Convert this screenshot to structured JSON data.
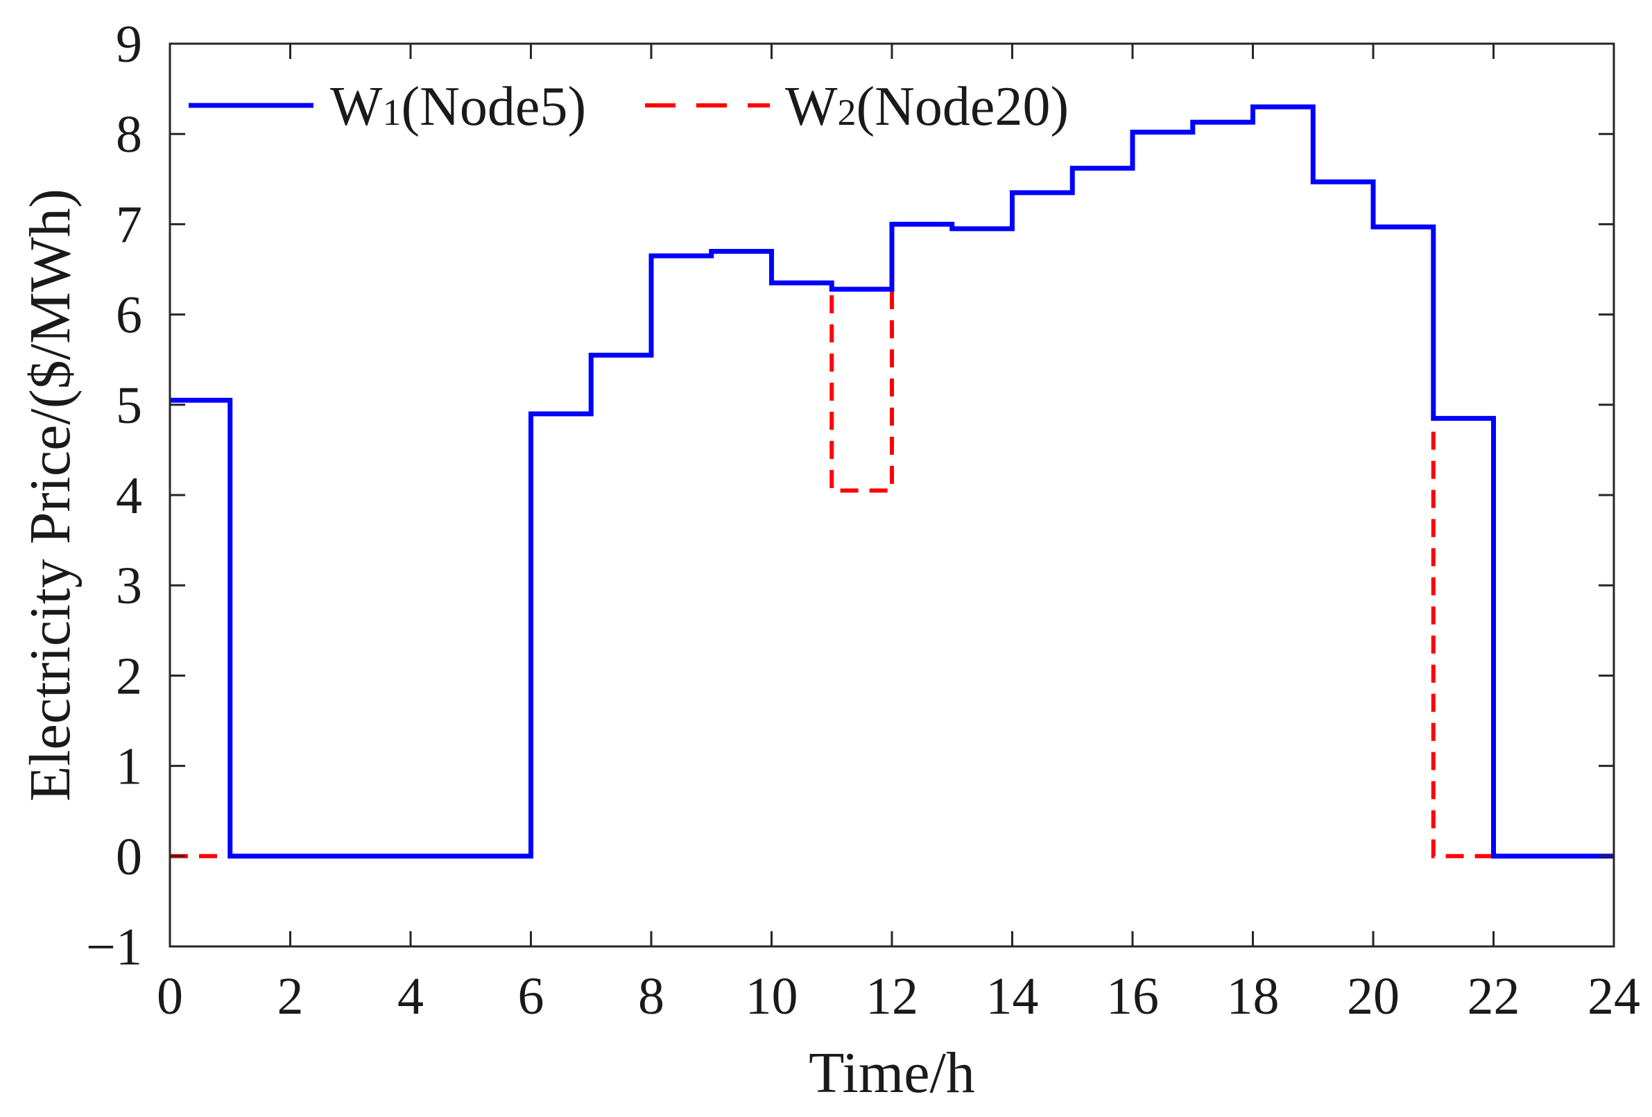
{
  "chart_data": {
    "type": "line",
    "step": true,
    "xlabel": "Time/h",
    "ylabel": "Electricity Price/($/MWh)",
    "xlim": [
      0,
      24
    ],
    "ylim": [
      -1,
      9
    ],
    "xticks": [
      0,
      2,
      4,
      6,
      8,
      10,
      12,
      14,
      16,
      18,
      20,
      22,
      24
    ],
    "yticks": [
      -1,
      0,
      1,
      2,
      3,
      4,
      5,
      6,
      7,
      8,
      9
    ],
    "ytick_labels": [
      "−1",
      "0",
      "1",
      "2",
      "3",
      "4",
      "5",
      "6",
      "7",
      "8",
      "9"
    ],
    "grid": false,
    "legend": {
      "placement": "top-left",
      "orientation": "horizontal"
    },
    "hours": [
      0,
      1,
      2,
      3,
      4,
      5,
      6,
      7,
      8,
      9,
      10,
      11,
      12,
      13,
      14,
      15,
      16,
      17,
      18,
      19,
      20,
      21,
      22,
      23
    ],
    "series": [
      {
        "name": "W1(Node5)",
        "name_main": "W",
        "name_sub": "1",
        "name_rest": "(Node5)",
        "color": "#0000ff",
        "style": "solid",
        "values": [
          5.05,
          0,
          0,
          0,
          0,
          0,
          4.9,
          5.55,
          6.65,
          6.7,
          6.35,
          6.28,
          7.0,
          6.95,
          7.35,
          7.62,
          8.02,
          8.13,
          8.3,
          7.47,
          6.97,
          4.85,
          0,
          0
        ]
      },
      {
        "name": "W2(Node20)",
        "name_main": "W",
        "name_sub": "2",
        "name_rest": "(Node20)",
        "color": "#ff0000",
        "style": "dashed",
        "values": [
          0,
          0,
          0,
          0,
          0,
          0,
          4.9,
          5.55,
          6.65,
          6.7,
          6.35,
          4.05,
          7.0,
          6.95,
          7.35,
          7.62,
          8.02,
          8.13,
          8.3,
          7.47,
          6.97,
          0,
          0,
          0
        ]
      }
    ]
  }
}
